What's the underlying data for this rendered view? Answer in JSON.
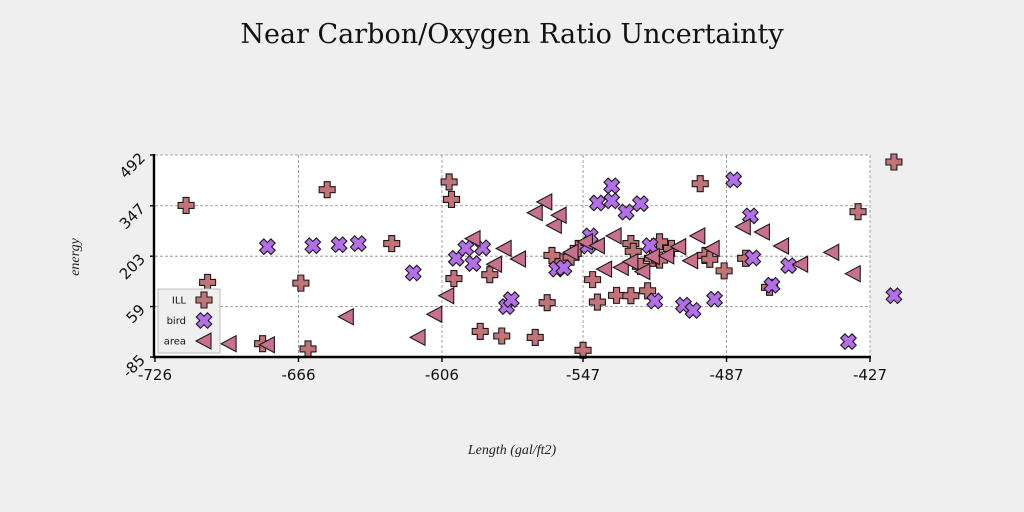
{
  "chart_data": {
    "type": "scatter",
    "title": "Near Carbon/Oxygen Ratio Uncertainty",
    "xlabel": "Length (gal/ft2)",
    "ylabel": "energy",
    "xlim": [
      -726,
      -427
    ],
    "ylim": [
      -85,
      492
    ],
    "x_ticks": [
      "-726",
      "-666",
      "-606",
      "-547",
      "-487",
      "-427"
    ],
    "y_ticks": [
      "-85",
      "59",
      "203",
      "347",
      "492"
    ],
    "grid": true,
    "legend_position": "bottom-left",
    "colors": {
      "ILL": "#c27378",
      "bird": "#b36ee8",
      "area": "#c9708c"
    },
    "series": [
      {
        "name": "ILL",
        "marker": "plus",
        "points": [
          [
            -713,
            348
          ],
          [
            -654,
            393
          ],
          [
            -704,
            128
          ],
          [
            -603,
            415
          ],
          [
            -602,
            365
          ],
          [
            -586,
            150
          ],
          [
            -556,
            187
          ],
          [
            -627,
            239
          ],
          [
            -601,
            139
          ],
          [
            -665,
            126
          ],
          [
            -681,
            -47
          ],
          [
            -662,
            -62
          ],
          [
            -590,
            -12
          ],
          [
            -581,
            -25
          ],
          [
            -567,
            -29
          ],
          [
            -562,
            70
          ],
          [
            -560,
            205
          ],
          [
            -552,
            200
          ],
          [
            -549,
            225
          ],
          [
            -543,
            136
          ],
          [
            -527,
            239
          ],
          [
            -526,
            217
          ],
          [
            -541,
            72
          ],
          [
            -547,
            -66
          ],
          [
            -533,
            91
          ],
          [
            -527,
            90
          ],
          [
            -523,
            174
          ],
          [
            -520,
            104
          ],
          [
            -518,
            197
          ],
          [
            -515,
            244
          ],
          [
            -515,
            192
          ],
          [
            -510,
            225
          ],
          [
            -496,
            205
          ],
          [
            -494,
            194
          ],
          [
            -498,
            410
          ],
          [
            -488,
            161
          ],
          [
            -479,
            197
          ],
          [
            -469,
            114
          ],
          [
            -432,
            330
          ],
          [
            -417,
            472
          ]
        ]
      },
      {
        "name": "bird",
        "marker": "x",
        "points": [
          [
            -679,
            230
          ],
          [
            -660,
            233
          ],
          [
            -649,
            236
          ],
          [
            -641,
            239
          ],
          [
            -618,
            155
          ],
          [
            -600,
            197
          ],
          [
            -596,
            226
          ],
          [
            -593,
            182
          ],
          [
            -589,
            227
          ],
          [
            -579,
            59
          ],
          [
            -577,
            79
          ],
          [
            -558,
            166
          ],
          [
            -555,
            170
          ],
          [
            -545,
            232
          ],
          [
            -544,
            261
          ],
          [
            -541,
            355
          ],
          [
            -535,
            404
          ],
          [
            -535,
            361
          ],
          [
            -529,
            329
          ],
          [
            -523,
            353
          ],
          [
            -519,
            233
          ],
          [
            -517,
            75
          ],
          [
            -505,
            63
          ],
          [
            -501,
            48
          ],
          [
            -492,
            80
          ],
          [
            -484,
            421
          ],
          [
            -477,
            318
          ],
          [
            -476,
            198
          ],
          [
            -468,
            120
          ],
          [
            -461,
            176
          ],
          [
            -436,
            -41
          ],
          [
            -417,
            90
          ]
        ]
      },
      {
        "name": "area",
        "marker": "triangle-left",
        "points": [
          [
            -695,
            -47
          ],
          [
            -679,
            -50
          ],
          [
            -646,
            30
          ],
          [
            -616,
            -29
          ],
          [
            -609,
            37
          ],
          [
            -604,
            90
          ],
          [
            -593,
            253
          ],
          [
            -584,
            180
          ],
          [
            -580,
            225
          ],
          [
            -574,
            195
          ],
          [
            -567,
            327
          ],
          [
            -563,
            358
          ],
          [
            -559,
            291
          ],
          [
            -557,
            320
          ],
          [
            -552,
            214
          ],
          [
            -546,
            244
          ],
          [
            -541,
            233
          ],
          [
            -538,
            166
          ],
          [
            -534,
            261
          ],
          [
            -531,
            171
          ],
          [
            -527,
            187
          ],
          [
            -522,
            159
          ],
          [
            -518,
            202
          ],
          [
            -512,
            204
          ],
          [
            -507,
            230
          ],
          [
            -502,
            190
          ],
          [
            -499,
            261
          ],
          [
            -493,
            225
          ],
          [
            -480,
            287
          ],
          [
            -472,
            272
          ],
          [
            -464,
            232
          ],
          [
            -456,
            180
          ],
          [
            -443,
            214
          ],
          [
            -434,
            153
          ]
        ]
      }
    ]
  }
}
